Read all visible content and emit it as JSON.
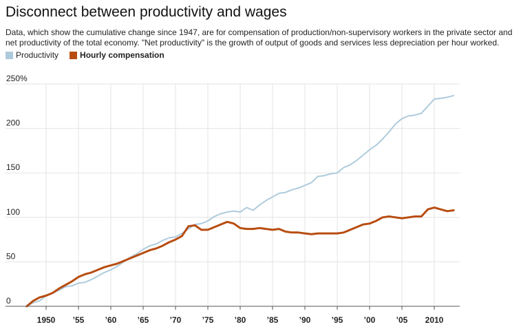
{
  "title": "Disconnect between productivity and wages",
  "subtitle": "Data, which show the cumulative change since 1947, are for compensation of production/non-supervisory workers in the private sector and net productivity of the total economy. \"Net productivity\" is the growth of output of goods and services less depreciation per hour worked.",
  "colors": {
    "productivity": "#aecbdc",
    "compensation": "#b84c10",
    "grid": "#e3e3e3",
    "axis": "#555555"
  },
  "chart_data": {
    "type": "line",
    "title": "Disconnect between productivity and wages",
    "xlabel": "",
    "ylabel": "",
    "xlim": [
      1947,
      2013
    ],
    "ylim": [
      0,
      250
    ],
    "grid": true,
    "legend_placement": "top-left",
    "y_ticks": [
      {
        "value": 0,
        "label": "0"
      },
      {
        "value": 50,
        "label": "50"
      },
      {
        "value": 100,
        "label": "100"
      },
      {
        "value": 150,
        "label": "150"
      },
      {
        "value": 200,
        "label": "200"
      },
      {
        "value": 250,
        "label": "250%"
      }
    ],
    "x_ticks": [
      {
        "value": 1950,
        "label": "1950"
      },
      {
        "value": 1955,
        "label": "’55"
      },
      {
        "value": 1960,
        "label": "’60"
      },
      {
        "value": 1965,
        "label": "’65"
      },
      {
        "value": 1970,
        "label": "’70"
      },
      {
        "value": 1975,
        "label": "’75"
      },
      {
        "value": 1980,
        "label": "’80"
      },
      {
        "value": 1985,
        "label": "’85"
      },
      {
        "value": 1990,
        "label": "’90"
      },
      {
        "value": 1995,
        "label": "’95"
      },
      {
        "value": 2000,
        "label": "’00"
      },
      {
        "value": 2005,
        "label": "’05"
      },
      {
        "value": 2010,
        "label": "2010"
      }
    ],
    "x": [
      1947,
      1948,
      1949,
      1950,
      1951,
      1952,
      1953,
      1954,
      1955,
      1956,
      1957,
      1958,
      1959,
      1960,
      1961,
      1962,
      1963,
      1964,
      1965,
      1966,
      1967,
      1968,
      1969,
      1970,
      1971,
      1972,
      1973,
      1974,
      1975,
      1976,
      1977,
      1978,
      1979,
      1980,
      1981,
      1982,
      1983,
      1984,
      1985,
      1986,
      1987,
      1988,
      1989,
      1990,
      1991,
      1992,
      1993,
      1994,
      1995,
      1996,
      1997,
      1998,
      1999,
      2000,
      2001,
      2002,
      2003,
      2004,
      2005,
      2006,
      2007,
      2008,
      2009,
      2010,
      2011,
      2012,
      2013
    ],
    "series": [
      {
        "name": "Productivity",
        "color": "#aecbdc",
        "values": [
          0,
          4,
          6,
          12,
          15,
          18,
          22,
          23,
          26,
          27,
          30,
          34,
          38,
          41,
          45,
          50,
          55,
          59,
          64,
          68,
          70,
          74,
          77,
          78,
          82,
          87,
          92,
          93,
          96,
          101,
          104,
          106,
          107,
          106,
          111,
          108,
          114,
          119,
          123,
          127,
          128,
          131,
          133,
          136,
          139,
          146,
          147,
          149,
          150,
          156,
          159,
          164,
          170,
          176,
          181,
          188,
          196,
          205,
          211,
          214,
          215,
          217,
          225,
          233,
          234,
          235,
          237
        ]
      },
      {
        "name": "Hourly compensation",
        "color": "#b84c10",
        "values": [
          0,
          6,
          10,
          12,
          15,
          20,
          24,
          28,
          33,
          36,
          38,
          41,
          44,
          46,
          48,
          51,
          54,
          57,
          60,
          63,
          65,
          68,
          72,
          75,
          79,
          90,
          91,
          86,
          86,
          89,
          92,
          95,
          93,
          88,
          87,
          87,
          88,
          87,
          86,
          87,
          84,
          83,
          83,
          82,
          81,
          82,
          82,
          82,
          82,
          83,
          86,
          89,
          92,
          93,
          96,
          100,
          101,
          100,
          99,
          100,
          101,
          101,
          109,
          111,
          109,
          107,
          108
        ]
      }
    ]
  }
}
